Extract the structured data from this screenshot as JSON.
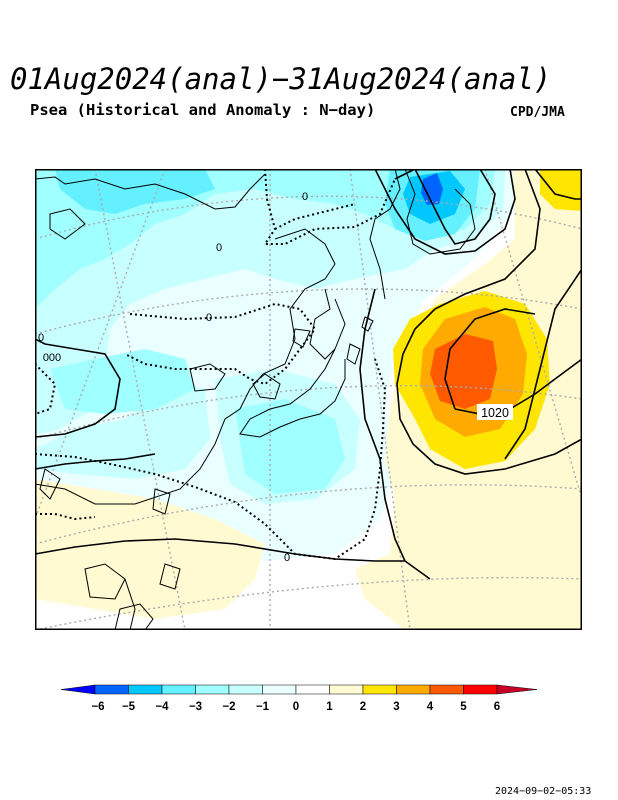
{
  "header": {
    "title": "01Aug2024(anal)−31Aug2024(anal)",
    "subtitle": "Psea (Historical and Anomaly : N−day)",
    "credit": "CPD/JMA"
  },
  "map": {
    "isobar_label_high": "1020",
    "anomaly_zero_labels": [
      "0",
      "0",
      "0",
      "0",
      "0",
      "000"
    ]
  },
  "colorbar": {
    "ticks": [
      "−6",
      "−5",
      "−4",
      "−3",
      "−2",
      "−1",
      "0",
      "1",
      "2",
      "3",
      "4",
      "5",
      "6"
    ],
    "colors": [
      "#0000ff",
      "#0064ff",
      "#00c8ff",
      "#64f0ff",
      "#a0ffff",
      "#c8ffff",
      "#eaffff",
      "#ffffff",
      "#fffad2",
      "#ffe600",
      "#ffaa00",
      "#ff5a00",
      "#ff0000",
      "#c80028"
    ],
    "low_arrow_color": "#0000ff",
    "high_arrow_color": "#c80028"
  },
  "footer": {
    "timestamp": "2024−09−02−05:33"
  }
}
